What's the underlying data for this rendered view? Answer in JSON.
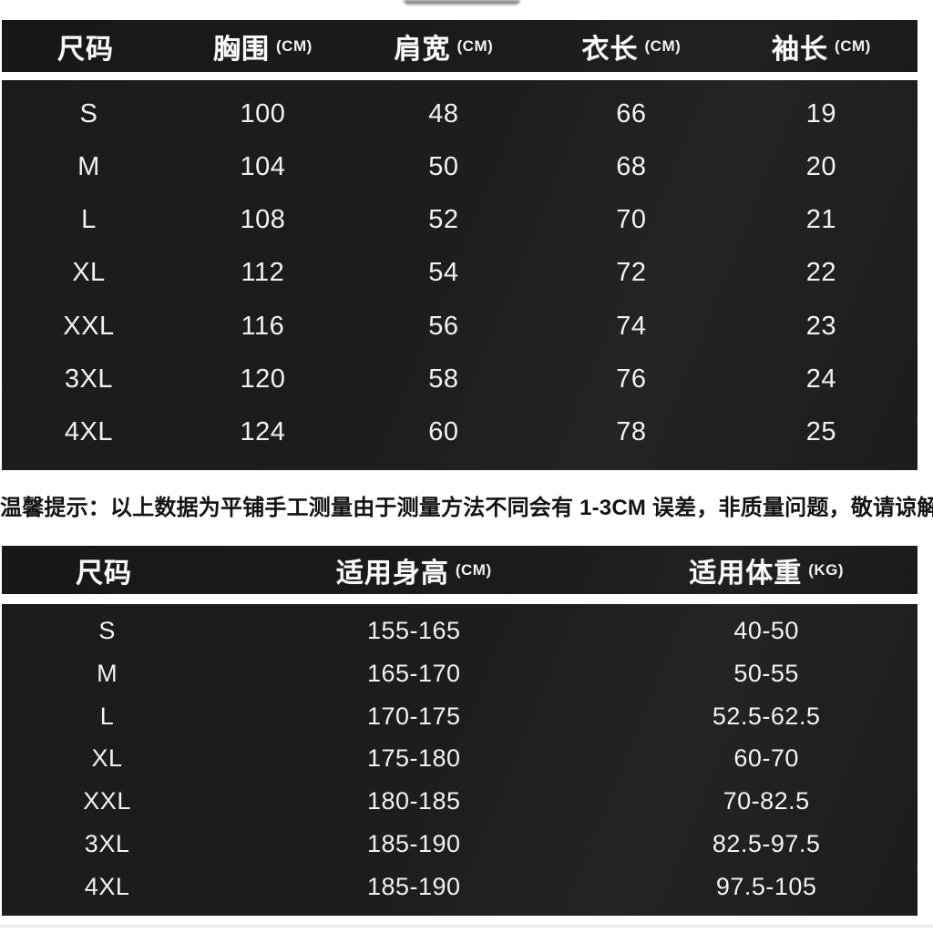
{
  "page": {
    "background_color": "#ffffff",
    "panel_color": "#1c1c1e",
    "panel_text_color": "#f2f2f2",
    "tip_text_color": "#131313"
  },
  "size_table": {
    "headers": [
      {
        "label": "尺码",
        "unit": ""
      },
      {
        "label": "胸围",
        "unit": "(CM)"
      },
      {
        "label": "肩宽",
        "unit": "(CM)"
      },
      {
        "label": "衣长",
        "unit": "(CM)"
      },
      {
        "label": "袖长",
        "unit": "(CM)"
      }
    ],
    "rows": [
      [
        "S",
        "100",
        "48",
        "66",
        "19"
      ],
      [
        "M",
        "104",
        "50",
        "68",
        "20"
      ],
      [
        "L",
        "108",
        "52",
        "70",
        "21"
      ],
      [
        "XL",
        "112",
        "54",
        "72",
        "22"
      ],
      [
        "XXL",
        "116",
        "56",
        "74",
        "23"
      ],
      [
        "3XL",
        "120",
        "58",
        "76",
        "24"
      ],
      [
        "4XL",
        "124",
        "60",
        "78",
        "25"
      ]
    ]
  },
  "tip": "温馨提示：以上数据为平铺手工测量由于测量方法不同会有 1-3CM 误差，非质量问题，敬请谅解！",
  "fit_table": {
    "headers": [
      {
        "label": "尺码",
        "unit": ""
      },
      {
        "label": "适用身高",
        "unit": "(CM)"
      },
      {
        "label": "适用体重",
        "unit": "(KG)"
      }
    ],
    "rows": [
      [
        "S",
        "155-165",
        "40-50"
      ],
      [
        "M",
        "165-170",
        "50-55"
      ],
      [
        "L",
        "170-175",
        "52.5-62.5"
      ],
      [
        "XL",
        "175-180",
        "60-70"
      ],
      [
        "XXL",
        "180-185",
        "70-82.5"
      ],
      [
        "3XL",
        "185-190",
        "82.5-97.5"
      ],
      [
        "4XL",
        "185-190",
        "97.5-105"
      ]
    ]
  }
}
